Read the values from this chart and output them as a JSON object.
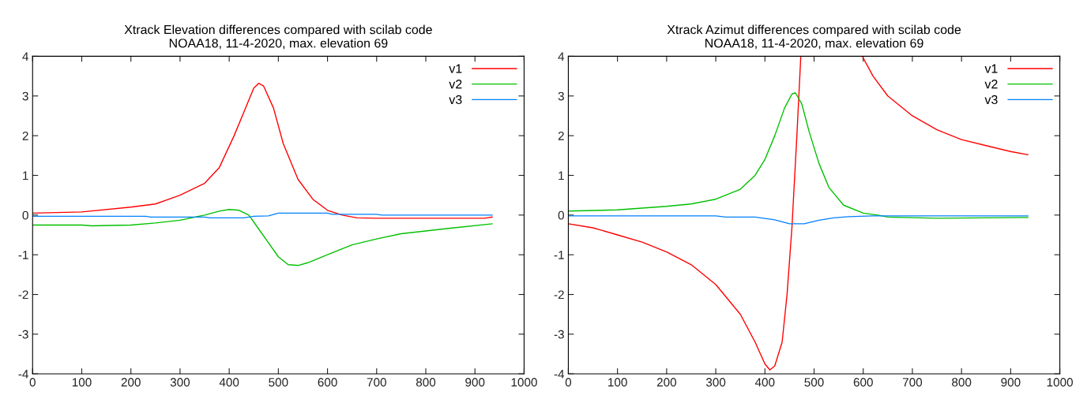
{
  "chart_data": [
    {
      "type": "line",
      "title": "Xtrack Elevation differences compared with scilab code",
      "subtitle": "NOAA18, 11-4-2020, max. elevation 69",
      "xlim": [
        0,
        1000
      ],
      "xticks": [
        0,
        100,
        200,
        300,
        400,
        500,
        600,
        700,
        800,
        900,
        1000
      ],
      "ylim": [
        -4,
        4
      ],
      "yticks": [
        -4,
        -3,
        -2,
        -1,
        0,
        1,
        2,
        3,
        4
      ],
      "grid": false,
      "legend": "top right",
      "marker": "none",
      "line_style": "solid",
      "series": [
        {
          "name": "v1",
          "color": "#ff0000",
          "x": [
            0,
            100,
            200,
            250,
            300,
            350,
            380,
            410,
            430,
            450,
            460,
            470,
            490,
            510,
            540,
            570,
            600,
            630,
            660,
            700,
            800,
            920,
            935
          ],
          "values": [
            0.05,
            0.08,
            0.2,
            0.28,
            0.5,
            0.8,
            1.2,
            2.0,
            2.6,
            3.2,
            3.32,
            3.25,
            2.7,
            1.8,
            0.9,
            0.4,
            0.12,
            0.0,
            -0.07,
            -0.08,
            -0.08,
            -0.08,
            -0.05
          ]
        },
        {
          "name": "v2",
          "color": "#00c000",
          "x": [
            0,
            100,
            120,
            200,
            250,
            300,
            350,
            380,
            400,
            420,
            440,
            460,
            480,
            500,
            520,
            540,
            560,
            600,
            650,
            700,
            750,
            800,
            850,
            935
          ],
          "values": [
            -0.25,
            -0.25,
            -0.27,
            -0.25,
            -0.2,
            -0.13,
            0.0,
            0.1,
            0.14,
            0.12,
            0.0,
            -0.35,
            -0.7,
            -1.05,
            -1.25,
            -1.27,
            -1.2,
            -1.0,
            -0.75,
            -0.6,
            -0.47,
            -0.4,
            -0.33,
            -0.22
          ]
        },
        {
          "name": "v3",
          "color": "#0080ff",
          "x": [
            0,
            230,
            240,
            350,
            360,
            430,
            450,
            480,
            500,
            600,
            610,
            700,
            710,
            935
          ],
          "values": [
            -0.03,
            -0.03,
            -0.05,
            -0.05,
            -0.07,
            -0.07,
            -0.03,
            -0.02,
            0.05,
            0.05,
            0.02,
            0.02,
            0.0,
            0.0
          ]
        }
      ]
    },
    {
      "type": "line",
      "title": "Xtrack Azimut differences compared with scilab code",
      "subtitle": "NOAA18, 11-4-2020, max. elevation 69",
      "xlim": [
        0,
        1000
      ],
      "xticks": [
        0,
        100,
        200,
        300,
        400,
        500,
        600,
        700,
        800,
        900,
        1000
      ],
      "ylim": [
        -4,
        4
      ],
      "yticks": [
        -4,
        -3,
        -2,
        -1,
        0,
        1,
        2,
        3,
        4
      ],
      "grid": false,
      "legend": "top right",
      "marker": "none",
      "line_style": "solid",
      "series": [
        {
          "name": "v1",
          "color": "#ff0000",
          "x": [
            0,
            50,
            100,
            150,
            200,
            250,
            300,
            350,
            380,
            400,
            410,
            420,
            435,
            445,
            455,
            465,
            473,
            535,
            598,
            620,
            650,
            700,
            750,
            800,
            850,
            900,
            935
          ],
          "values": [
            -0.22,
            -0.32,
            -0.5,
            -0.68,
            -0.93,
            -1.25,
            -1.75,
            -2.5,
            -3.2,
            -3.75,
            -3.9,
            -3.8,
            -3.2,
            -2.0,
            -0.3,
            2.0,
            4.0,
            null,
            4.0,
            3.5,
            3.0,
            2.5,
            2.15,
            1.9,
            1.75,
            1.6,
            1.52
          ]
        },
        {
          "name": "v2",
          "color": "#00c000",
          "x": [
            0,
            100,
            200,
            250,
            300,
            350,
            380,
            400,
            420,
            440,
            455,
            462,
            475,
            490,
            510,
            530,
            560,
            600,
            630,
            650,
            750,
            935
          ],
          "values": [
            0.1,
            0.13,
            0.22,
            0.28,
            0.4,
            0.65,
            1.0,
            1.4,
            2.0,
            2.7,
            3.05,
            3.08,
            2.8,
            2.1,
            1.3,
            0.7,
            0.25,
            0.05,
            0.0,
            -0.05,
            -0.08,
            -0.06
          ]
        },
        {
          "name": "v3",
          "color": "#0080ff",
          "x": [
            0,
            300,
            320,
            380,
            420,
            450,
            480,
            510,
            540,
            570,
            620,
            935
          ],
          "values": [
            -0.02,
            -0.02,
            -0.05,
            -0.05,
            -0.12,
            -0.22,
            -0.22,
            -0.13,
            -0.07,
            -0.04,
            -0.02,
            -0.02
          ]
        }
      ]
    }
  ]
}
